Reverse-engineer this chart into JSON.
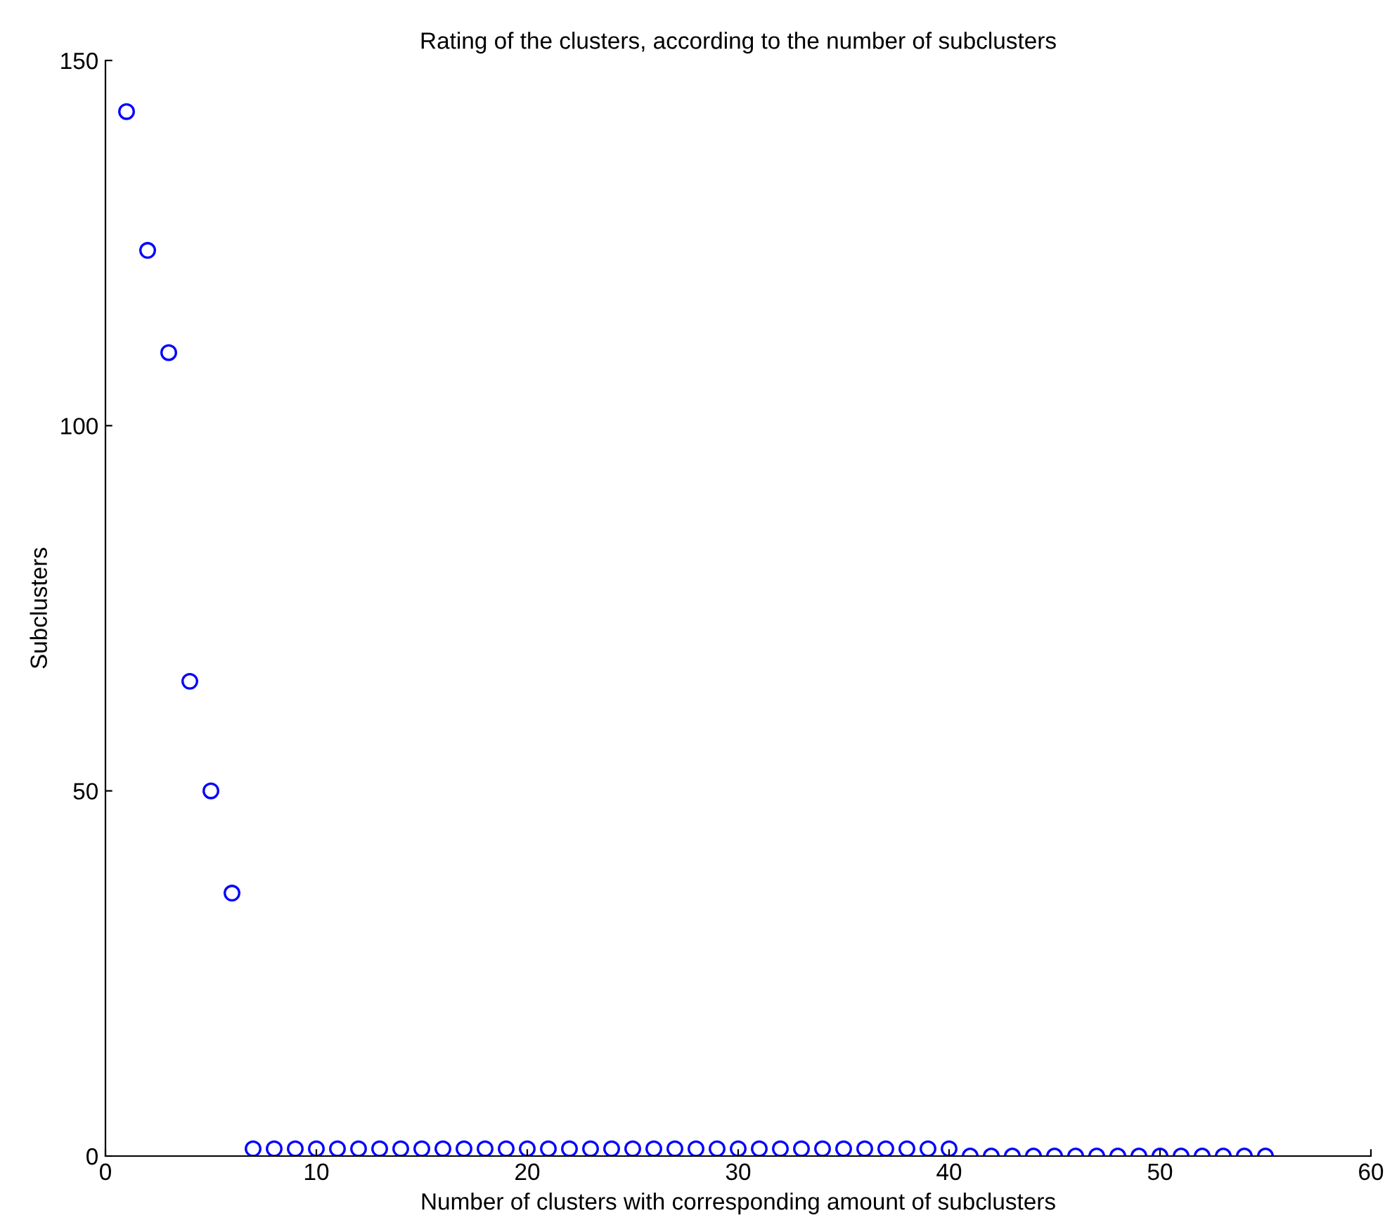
{
  "chart_data": {
    "type": "scatter",
    "title": "Rating of the clusters, according to the number of subclusters",
    "xlabel": "Number of clusters with corresponding amount of subclusters",
    "ylabel": "Subclusters",
    "x": [
      1,
      2,
      3,
      4,
      5,
      6,
      7,
      8,
      9,
      10,
      11,
      12,
      13,
      14,
      15,
      16,
      17,
      18,
      19,
      20,
      21,
      22,
      23,
      24,
      25,
      26,
      27,
      28,
      29,
      30,
      31,
      32,
      33,
      34,
      35,
      36,
      37,
      38,
      39,
      40,
      41,
      42,
      43,
      44,
      45,
      46,
      47,
      48,
      49,
      50,
      51,
      52,
      53,
      54,
      55
    ],
    "series": [
      {
        "color": "#0000ff",
        "values": [
          143,
          124,
          110,
          65,
          50,
          36,
          1,
          1,
          1,
          1,
          1,
          1,
          1,
          1,
          1,
          1,
          1,
          1,
          1,
          1,
          1,
          1,
          1,
          1,
          1,
          1,
          1,
          1,
          1,
          1,
          1,
          1,
          1,
          1,
          1,
          1,
          1,
          1,
          1,
          1,
          0,
          0,
          0,
          0,
          0,
          0,
          0,
          0,
          0,
          0,
          0,
          0,
          0,
          0,
          0
        ]
      }
    ],
    "marker": "circle",
    "xlim": [
      0,
      60
    ],
    "ylim": [
      0,
      150
    ],
    "xticks": [
      0,
      10,
      20,
      30,
      40,
      50,
      60
    ],
    "yticks": [
      0,
      50,
      100,
      150
    ],
    "grid": false,
    "legend": false
  }
}
